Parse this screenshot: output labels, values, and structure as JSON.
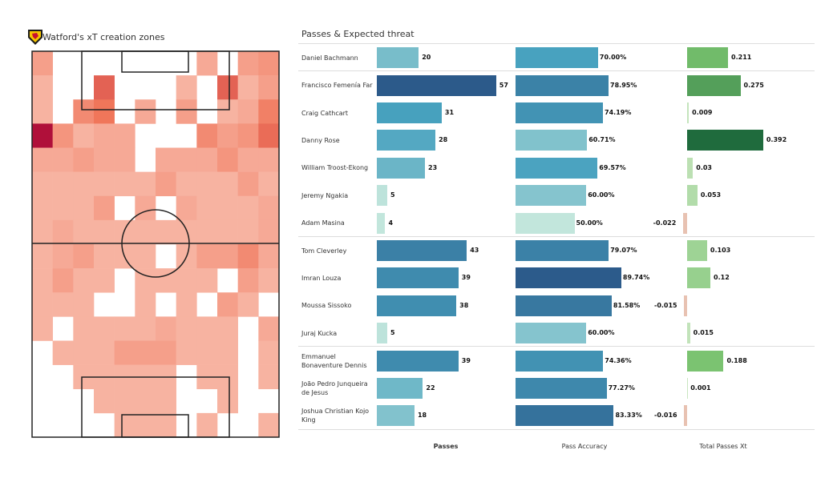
{
  "pitch": {
    "title": "Watford's xT creation zones",
    "logo": "watford-badge",
    "heat_color_low": "#fcdcd1",
    "heat_color_high": "#b0103a",
    "grid_rows_top_to_bottom": [
      [
        0.3,
        0,
        0,
        0,
        0,
        0,
        0,
        0,
        0.25,
        0,
        0.3,
        0.35
      ],
      [
        0.2,
        0,
        0,
        0.6,
        0,
        0,
        0,
        0.2,
        0,
        0.6,
        0.2,
        0.3
      ],
      [
        0.2,
        0,
        0.4,
        0.5,
        0,
        0.25,
        0,
        0.3,
        0,
        0.2,
        0.25,
        0.45
      ],
      [
        1.0,
        0.35,
        0.2,
        0.25,
        0.25,
        0,
        0,
        0,
        0.4,
        0.3,
        0.35,
        0.55
      ],
      [
        0.25,
        0.25,
        0.3,
        0.25,
        0.25,
        0,
        0.25,
        0.25,
        0.25,
        0.35,
        0.25,
        0.25
      ],
      [
        0.2,
        0.2,
        0.2,
        0.2,
        0.2,
        0.2,
        0.3,
        0.2,
        0.2,
        0.2,
        0.3,
        0.2
      ],
      [
        0.2,
        0.2,
        0.2,
        0.3,
        0,
        0.25,
        0,
        0.25,
        0.2,
        0.2,
        0.2,
        0.25
      ],
      [
        0.2,
        0.25,
        0.2,
        0.2,
        0.2,
        0.2,
        0.2,
        0.2,
        0.2,
        0.2,
        0.2,
        0.25
      ],
      [
        0.2,
        0.25,
        0.3,
        0.2,
        0.2,
        0.2,
        0,
        0.2,
        0.3,
        0.3,
        0.4,
        0.25
      ],
      [
        0.2,
        0.3,
        0.2,
        0.2,
        0,
        0.2,
        0.2,
        0.2,
        0.2,
        0,
        0.3,
        0.2
      ],
      [
        0.2,
        0.2,
        0.2,
        0,
        0,
        0.2,
        0,
        0.2,
        0,
        0.3,
        0.2,
        0
      ],
      [
        0.2,
        0,
        0.2,
        0.2,
        0.2,
        0.2,
        0.25,
        0.2,
        0.2,
        0.2,
        0,
        0.25
      ],
      [
        0,
        0.2,
        0.2,
        0.2,
        0.3,
        0.3,
        0.3,
        0.2,
        0.2,
        0.2,
        0,
        0.2
      ],
      [
        0,
        0,
        0.2,
        0.2,
        0.2,
        0.2,
        0.2,
        0,
        0.2,
        0.2,
        0,
        0.2
      ],
      [
        0,
        0,
        0,
        0.2,
        0.2,
        0.2,
        0.2,
        0,
        0,
        0.2,
        0,
        0
      ],
      [
        0,
        0,
        0,
        0,
        0.2,
        0.2,
        0.2,
        0,
        0.2,
        0,
        0,
        0.2
      ]
    ]
  },
  "chart_data": {
    "type": "bar",
    "title": "Passes & Expected threat",
    "columns": [
      "Passes",
      "Pass Accuracy",
      "Total Passes Xt"
    ],
    "groups_separated_after_rows": [
      1,
      7,
      11
    ],
    "rows": [
      {
        "player": "Daniel Bachmann",
        "passes": 20,
        "accuracy": 70.0,
        "accuracy_label": "70.00%",
        "xt": 0.211,
        "xt_label": "0.211"
      },
      {
        "player": "Francisco Femenía Far",
        "passes": 57,
        "accuracy": 78.95,
        "accuracy_label": "78.95%",
        "xt": 0.275,
        "xt_label": "0.275"
      },
      {
        "player": "Craig Cathcart",
        "passes": 31,
        "accuracy": 74.19,
        "accuracy_label": "74.19%",
        "xt": 0.009,
        "xt_label": "0.009"
      },
      {
        "player": "Danny Rose",
        "passes": 28,
        "accuracy": 60.71,
        "accuracy_label": "60.71%",
        "xt": 0.392,
        "xt_label": "0.392"
      },
      {
        "player": "William Troost-Ekong",
        "passes": 23,
        "accuracy": 69.57,
        "accuracy_label": "69.57%",
        "xt": 0.03,
        "xt_label": "0.03"
      },
      {
        "player": "Jeremy Ngakia",
        "passes": 5,
        "accuracy": 60.0,
        "accuracy_label": "60.00%",
        "xt": 0.053,
        "xt_label": "0.053"
      },
      {
        "player": "Adam Masina",
        "passes": 4,
        "accuracy": 50.0,
        "accuracy_label": "50.00%",
        "xt": -0.022,
        "xt_label": "-0.022"
      },
      {
        "player": "Tom Cleverley",
        "passes": 43,
        "accuracy": 79.07,
        "accuracy_label": "79.07%",
        "xt": 0.103,
        "xt_label": "0.103"
      },
      {
        "player": "Imran Louza",
        "passes": 39,
        "accuracy": 89.74,
        "accuracy_label": "89.74%",
        "xt": 0.12,
        "xt_label": "0.12"
      },
      {
        "player": "Moussa Sissoko",
        "passes": 38,
        "accuracy": 81.58,
        "accuracy_label": "81.58%",
        "xt": -0.015,
        "xt_label": "-0.015"
      },
      {
        "player": "Juraj Kucka",
        "passes": 5,
        "accuracy": 60.0,
        "accuracy_label": "60.00%",
        "xt": 0.015,
        "xt_label": "0.015"
      },
      {
        "player": "Emmanuel Bonaventure Dennis",
        "passes": 39,
        "accuracy": 74.36,
        "accuracy_label": "74.36%",
        "xt": 0.188,
        "xt_label": "0.188"
      },
      {
        "player": "João Pedro Junqueira de Jesus",
        "passes": 22,
        "accuracy": 77.27,
        "accuracy_label": "77.27%",
        "xt": 0.001,
        "xt_label": "0.001"
      },
      {
        "player": "Joshua Christian Kojo King",
        "passes": 18,
        "accuracy": 83.33,
        "accuracy_label": "83.33%",
        "xt": -0.016,
        "xt_label": "-0.016"
      }
    ],
    "colors": {
      "blue_low": "#c2e6dc",
      "blue_high": "#2c5a8a",
      "green_low": "#c8e6c0",
      "green_high": "#1f6b3d",
      "negative": "#e8c2b2"
    }
  }
}
